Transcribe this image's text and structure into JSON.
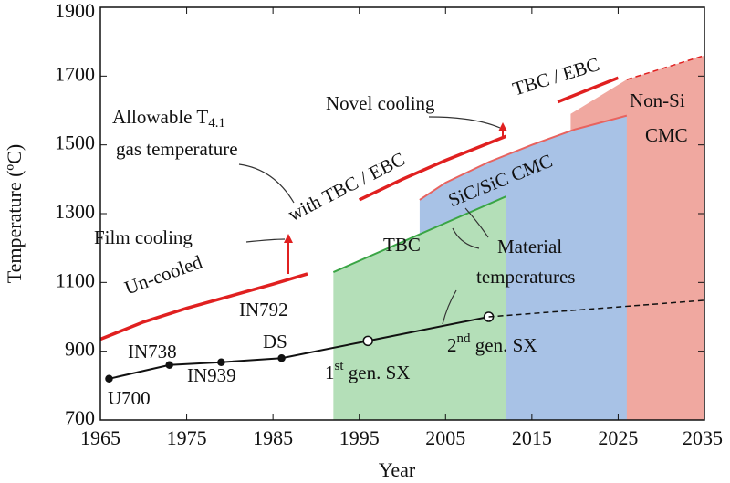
{
  "chart_data": {
    "type": "line",
    "x_label": "Year",
    "y_label": "Temperature  (ºC)",
    "xlim": [
      1965,
      2035
    ],
    "xticks": [
      1965,
      1975,
      1985,
      1995,
      2005,
      2015,
      2025,
      2035
    ],
    "ylim": [
      700,
      1900
    ],
    "yticks": [
      700,
      900,
      1100,
      1300,
      1500,
      1700,
      1900
    ],
    "series": [
      {
        "name": "Non-Si CMC",
        "type": "area",
        "color": "#f0a8a0",
        "x": [
          2019.5,
          2026,
          2035
        ],
        "values": [
          1590,
          1690,
          1760
        ]
      },
      {
        "name": "SiC/SiC CMC",
        "type": "area",
        "color": "#a8c2e6",
        "x": [
          2002,
          2005,
          2010,
          2015,
          2020,
          2026
        ],
        "values": [
          1340,
          1390,
          1450,
          1500,
          1545,
          1585
        ]
      },
      {
        "name": "TBC",
        "type": "area",
        "color": "#b4dfb8",
        "x": [
          1992,
          2012
        ],
        "values": [
          1130,
          1350
        ]
      },
      {
        "type": "line",
        "color": "#e8635f",
        "edge": true,
        "x": [
          2002,
          2005,
          2010,
          2015,
          2020,
          2026
        ],
        "values": [
          1340,
          1390,
          1450,
          1500,
          1545,
          1585
        ],
        "width": 2
      },
      {
        "type": "line",
        "color": "#3aa545",
        "x": [
          1992,
          2012
        ],
        "values": [
          1130,
          1350
        ],
        "width": 2
      },
      {
        "type": "line",
        "color": "#e02020",
        "width": 3.5,
        "x": [
          1965,
          1970,
          1975,
          1980,
          1985,
          1989,
          1987,
          1995,
          2000,
          2005,
          2012,
          2012,
          2018,
          2025
        ],
        "values": [
          935,
          985,
          1025,
          1060,
          1095,
          1125,
          null,
          1340,
          1400,
          1455,
          1525,
          null,
          1625,
          1695
        ]
      },
      {
        "type": "line",
        "color": "#e02020",
        "width": 1.5,
        "dash": true,
        "x": [
          2026,
          2035
        ],
        "values": [
          1690,
          1760
        ]
      },
      {
        "type": "line",
        "color": "#111",
        "width": 2,
        "x": [
          1966,
          1973,
          1979,
          1986,
          1996,
          2010
        ],
        "values": [
          820,
          860,
          868,
          880,
          930,
          1000
        ],
        "marker_fill": [
          "#111",
          "#111",
          "#111",
          "#111",
          "#fff",
          "#fff"
        ]
      },
      {
        "type": "line",
        "color": "#111",
        "width": 1.5,
        "dash": true,
        "x": [
          2010,
          2035
        ],
        "values": [
          1000,
          1048
        ]
      }
    ],
    "annotations": [
      [
        "Un-cooled"
      ],
      [
        "Film cooling"
      ],
      [
        "Allowable T",
        "4.1"
      ],
      [
        "gas temperature"
      ],
      [
        "with TBC / EBC"
      ],
      [
        "Novel cooling"
      ],
      [
        "TBC / EBC"
      ],
      [
        "Non-Si"
      ],
      [
        "CMC"
      ],
      [
        "SiC/SiC CMC"
      ],
      [
        "TBC"
      ],
      [
        "Material"
      ],
      [
        "temperatures"
      ],
      [
        "IN792"
      ],
      [
        "DS"
      ],
      [
        "IN738"
      ],
      [
        "IN939"
      ],
      [
        "U700"
      ],
      [
        "1",
        "st",
        " gen. SX"
      ],
      [
        "2",
        "nd",
        " gen. SX"
      ]
    ]
  }
}
